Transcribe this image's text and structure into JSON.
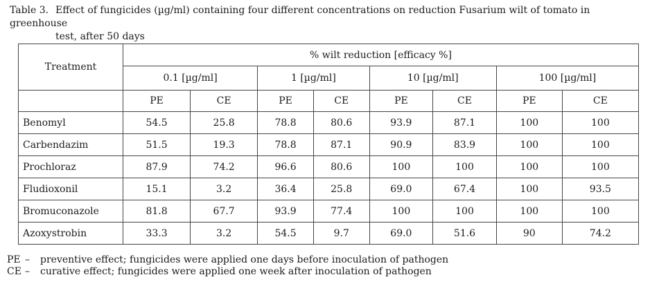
{
  "caption": {
    "number": "Table 3.",
    "line1": "Effect of fungicides (µg/ml) containing four different concentrations on reduction Fusarium wilt of tomato in greenhouse",
    "line2": "test, after 50 days"
  },
  "table": {
    "treatment_header": "Treatment",
    "group_header": "% wilt reduction [efficacy %]",
    "concentrations": [
      "0.1 [µg/ml]",
      "1 [µg/ml]",
      "10 [µg/ml]",
      "100 [µg/ml]"
    ],
    "subheaders": [
      "PE",
      "CE",
      "PE",
      "CE",
      "PE",
      "CE",
      "PE",
      "CE"
    ],
    "rows": [
      {
        "treatment": "Benomyl",
        "values": [
          "54.5",
          "25.8",
          "78.8",
          "80.6",
          "93.9",
          "87.1",
          "100",
          "100"
        ]
      },
      {
        "treatment": "Carbendazim",
        "values": [
          "51.5",
          "19.3",
          "78.8",
          "87.1",
          "90.9",
          "83.9",
          "100",
          "100"
        ]
      },
      {
        "treatment": "Prochloraz",
        "values": [
          "87.9",
          "74.2",
          "96.6",
          "80.6",
          "100",
          "100",
          "100",
          "100"
        ]
      },
      {
        "treatment": "Fludioxonil",
        "values": [
          "15.1",
          "3.2",
          "36.4",
          "25.8",
          "69.0",
          "67.4",
          "100",
          "93.5"
        ]
      },
      {
        "treatment": "Bromuconazole",
        "values": [
          "81.8",
          "67.7",
          "93.9",
          "77.4",
          "100",
          "100",
          "100",
          "100"
        ]
      },
      {
        "treatment": "Azoxystrobin",
        "values": [
          "33.3",
          "3.2",
          "54.5",
          "9.7",
          "69.0",
          "51.6",
          "90",
          "74.2"
        ]
      }
    ]
  },
  "footnotes": [
    {
      "abbr": "PE",
      "dash": "–",
      "text": "preventive effect; fungicides were applied one days before inoculation of pathogen"
    },
    {
      "abbr": "CE",
      "dash": "–",
      "text": "curative effect; fungicides were applied one week after inoculation of pathogen"
    }
  ]
}
